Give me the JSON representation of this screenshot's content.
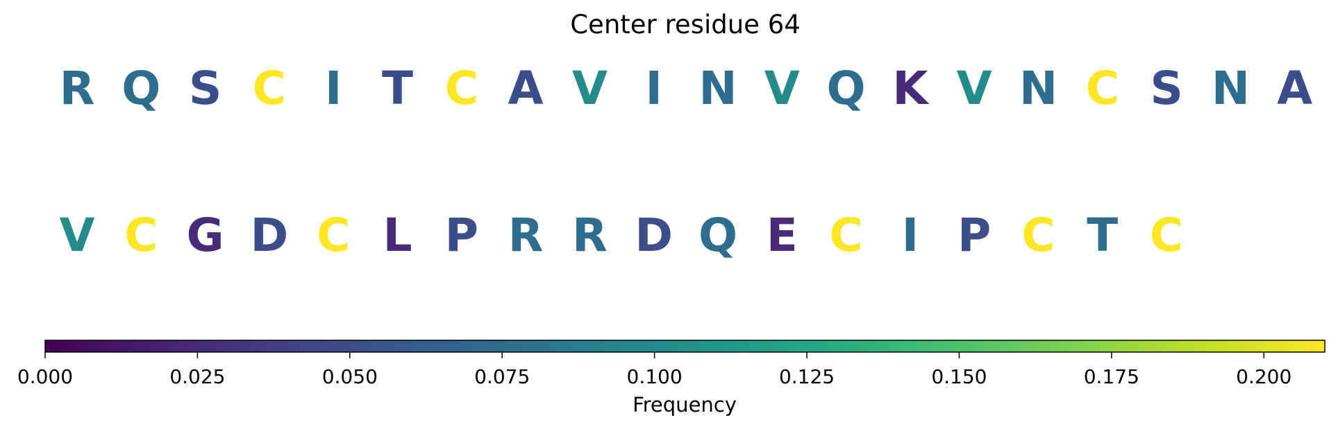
{
  "chart_data": {
    "type": "heatmap",
    "title": "Center residue 64",
    "rows": [
      [
        "R",
        "Q",
        "S",
        "C",
        "I",
        "T",
        "C",
        "A",
        "V",
        "I",
        "N",
        "V",
        "Q",
        "K",
        "V",
        "N",
        "C",
        "S",
        "N",
        "A"
      ],
      [
        "V",
        "C",
        "G",
        "D",
        "C",
        "L",
        "P",
        "R",
        "R",
        "D",
        "Q",
        "E",
        "C",
        "I",
        "P",
        "C",
        "T",
        "C"
      ]
    ],
    "frequencies": [
      [
        0.075,
        0.075,
        0.05,
        0.21,
        0.075,
        0.05,
        0.21,
        0.05,
        0.1,
        0.075,
        0.075,
        0.1,
        0.075,
        0.025,
        0.1,
        0.075,
        0.21,
        0.05,
        0.075,
        0.05
      ],
      [
        0.1,
        0.21,
        0.025,
        0.05,
        0.21,
        0.025,
        0.05,
        0.075,
        0.075,
        0.05,
        0.075,
        0.025,
        0.21,
        0.075,
        0.05,
        0.21,
        0.075,
        0.21
      ]
    ],
    "colorbar": {
      "label": "Frequency",
      "range": [
        0.0,
        0.21
      ],
      "ticks": [
        0.0,
        0.025,
        0.05,
        0.075,
        0.1,
        0.125,
        0.15,
        0.175,
        0.2
      ],
      "tick_labels": [
        "0.000",
        "0.025",
        "0.050",
        "0.075",
        "0.100",
        "0.125",
        "0.150",
        "0.175",
        "0.200"
      ],
      "colormap": "viridis"
    }
  }
}
